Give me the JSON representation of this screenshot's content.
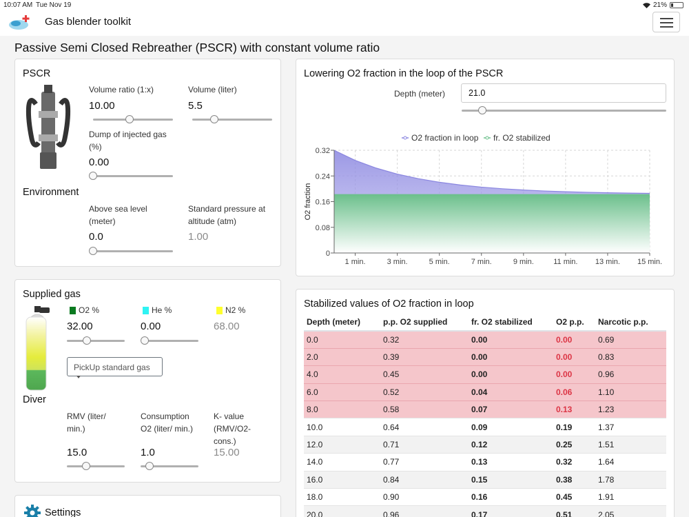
{
  "status": {
    "time": "10:07 AM",
    "date": "Tue Nov 19",
    "battery": "21%",
    "battery_level": 0.21
  },
  "navbar": {
    "brand": "Gas blender toolkit",
    "logo": "dive-logo-icon",
    "menu": "hamburger-menu-icon"
  },
  "page_title": "Passive Semi Closed Rebreather (PSCR) with constant volume ratio",
  "pscr": {
    "title": "PSCR",
    "volume_ratio": {
      "label": "Volume ratio (1:x)",
      "value": "10.00",
      "slider": 0.46
    },
    "volume": {
      "label": "Volume (liter)",
      "value": "5.5",
      "slider": 0.28
    },
    "dump": {
      "label": "Dump of injected gas (%)",
      "value": "0.00",
      "slider": 0.0
    },
    "environment_title": "Environment",
    "above_sea": {
      "label": "Above sea level (meter)",
      "value": "0.0",
      "slider": 0.0
    },
    "std_pressure": {
      "label": "Standard pressure at altitude (atm)",
      "value": "1.00"
    }
  },
  "supplied": {
    "title": "Supplied gas",
    "o2": {
      "label": "O2 %",
      "value": "32.00",
      "color": "#0a7a20",
      "slider": 0.35
    },
    "he": {
      "label": "He %",
      "value": "0.00",
      "color": "#2ff3f3",
      "slider": 0.0
    },
    "n2": {
      "label": "N2 %",
      "value": "68.00",
      "color": "#ffff2e"
    },
    "pickup": "PickUp standard gas",
    "diver_title": "Diver",
    "rmv": {
      "label": "RMV (liter/ min.)",
      "value": "15.0",
      "slider": 0.33
    },
    "consumption": {
      "label": "Consumption O2 (liter/ min.)",
      "value": "1.0",
      "slider": 0.15
    },
    "kvalue": {
      "label": "K- value (RMV/O2-cons.)",
      "value": "15.00"
    }
  },
  "settings": {
    "title": "Settings"
  },
  "lowering": {
    "title": "Lowering O2 fraction in the loop of the PSCR",
    "depth_label": "Depth (meter)",
    "depth_value": "21.0",
    "depth_slider": 0.1
  },
  "chart_data": {
    "type": "area",
    "xlabel": "",
    "ylabel": "O2 fraction",
    "x": [
      0,
      1,
      2,
      3,
      4,
      5,
      6,
      7,
      8,
      9,
      10,
      11,
      12,
      13,
      14,
      15
    ],
    "x_tick_labels": [
      "1 min.",
      "3 min.",
      "5 min.",
      "7 min.",
      "9 min.",
      "11 min.",
      "13 min.",
      "15 min."
    ],
    "y_ticks": [
      "0",
      "0.08",
      "0.16",
      "0.24",
      "0.32"
    ],
    "ylim": [
      0,
      0.32
    ],
    "grid": true,
    "legend": "top",
    "series": [
      {
        "name": "O2 fraction in loop",
        "color": "#8a86e0",
        "values": [
          0.32,
          0.2885,
          0.2644,
          0.2458,
          0.2315,
          0.2204,
          0.2118,
          0.2052,
          0.2001,
          0.1962,
          0.1932,
          0.1909,
          0.1891,
          0.1877,
          0.1866,
          0.1858
        ]
      },
      {
        "name": "fr. O2 stabilized",
        "color": "#6cc08c",
        "values": [
          0.182,
          0.182,
          0.182,
          0.182,
          0.182,
          0.182,
          0.182,
          0.182,
          0.182,
          0.182,
          0.182,
          0.182,
          0.182,
          0.182,
          0.182,
          0.182
        ]
      }
    ]
  },
  "stabilized": {
    "title": "Stabilized values of O2 fraction in loop",
    "headers": [
      "Depth (meter)",
      "p.p. O2 supplied",
      "fr. O2 stabilized",
      "O2 p.p.",
      "Narcotic p.p."
    ],
    "rows": [
      [
        "0.0",
        "0.32",
        "0.00",
        "0.00",
        "0.69"
      ],
      [
        "2.0",
        "0.39",
        "0.00",
        "0.00",
        "0.83"
      ],
      [
        "4.0",
        "0.45",
        "0.00",
        "0.00",
        "0.96"
      ],
      [
        "6.0",
        "0.52",
        "0.04",
        "0.06",
        "1.10"
      ],
      [
        "8.0",
        "0.58",
        "0.07",
        "0.13",
        "1.23"
      ],
      [
        "10.0",
        "0.64",
        "0.09",
        "0.19",
        "1.37"
      ],
      [
        "12.0",
        "0.71",
        "0.12",
        "0.25",
        "1.51"
      ],
      [
        "14.0",
        "0.77",
        "0.13",
        "0.32",
        "1.64"
      ],
      [
        "16.0",
        "0.84",
        "0.15",
        "0.38",
        "1.78"
      ],
      [
        "18.0",
        "0.90",
        "0.16",
        "0.45",
        "1.91"
      ],
      [
        "20.0",
        "0.96",
        "0.17",
        "0.51",
        "2.05"
      ]
    ],
    "danger_rows": 5
  }
}
